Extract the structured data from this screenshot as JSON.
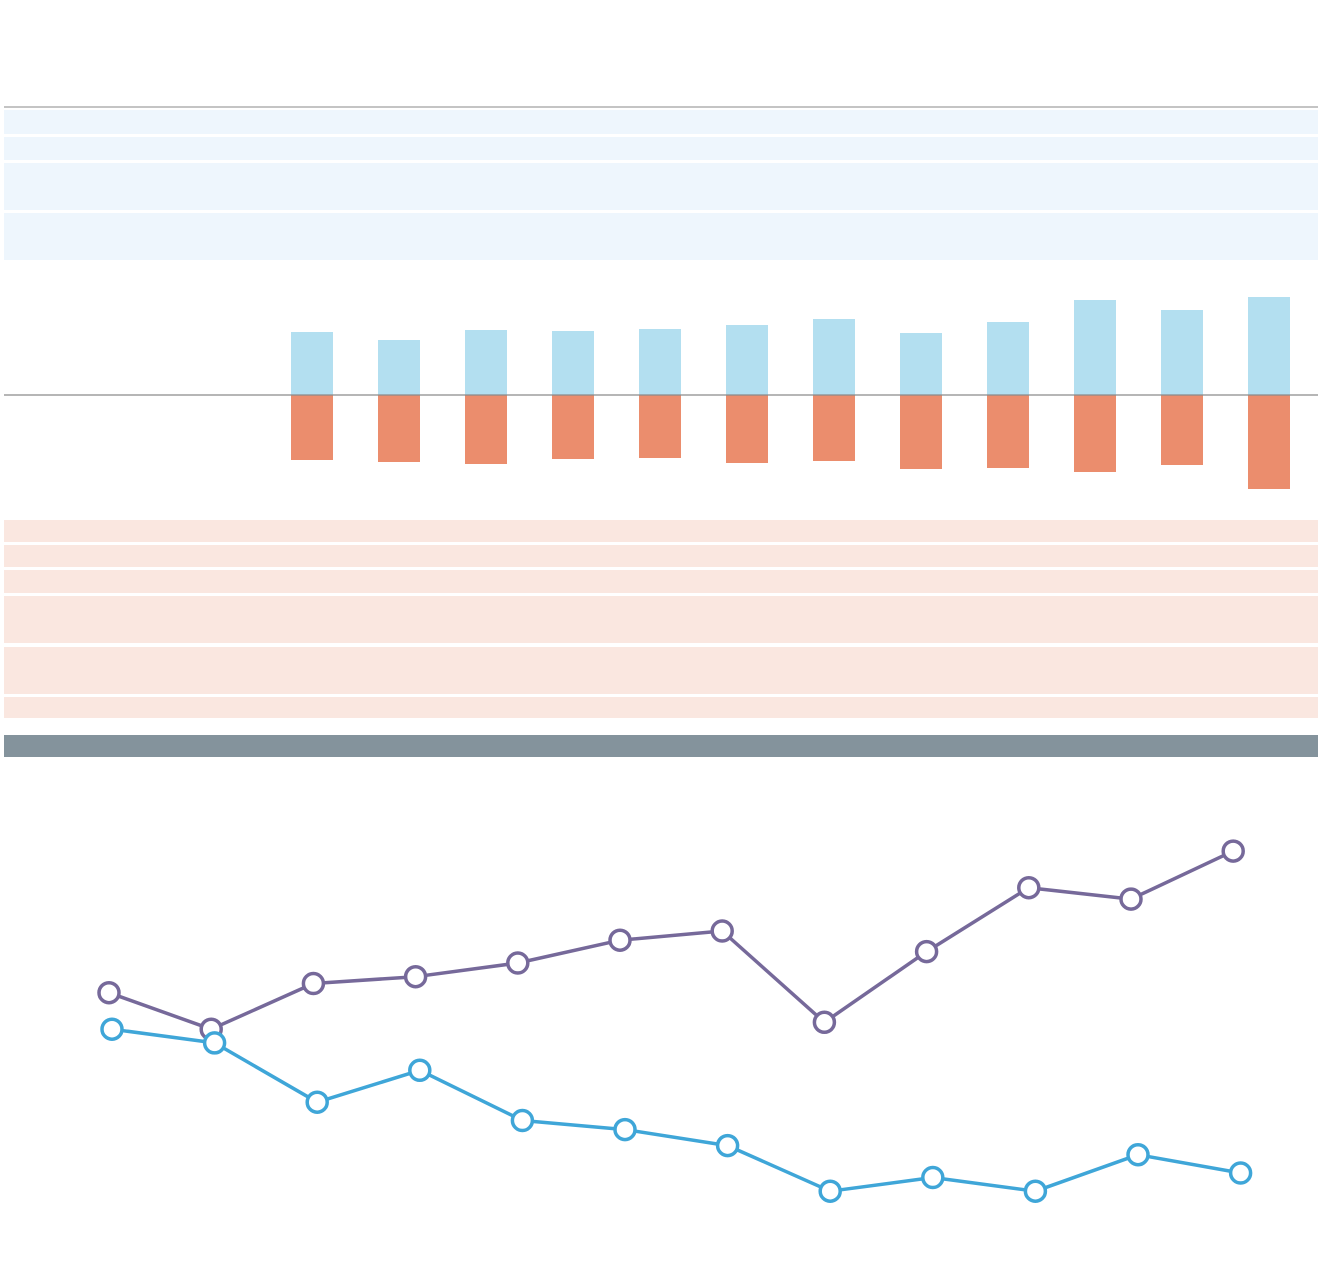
{
  "colors": {
    "positive_bar": "#b3dff0",
    "negative_bar": "#eb8d6d",
    "upper_band": "#eef6fd",
    "lower_band": "#fae7e0",
    "divider_bar": "#84939c",
    "axis_line": "#8a8a8a",
    "line_series_a": "#76699a",
    "line_series_b": "#3fa6d8",
    "marker_fill": "#ffffff"
  },
  "chart_data": [
    {
      "type": "bar",
      "categories": [
        "",
        "",
        "",
        "",
        "",
        "",
        "",
        "",
        "",
        "",
        "",
        "",
        "",
        "",
        ""
      ],
      "series": [
        {
          "values": [
            null,
            null,
            null,
            63,
            55,
            65,
            64,
            66,
            70,
            76,
            62,
            73,
            95,
            85,
            98
          ]
        },
        {
          "values": [
            null,
            null,
            null,
            -65,
            -67,
            -69,
            -64,
            -63,
            -68,
            -66,
            -74,
            -73,
            -77,
            -70,
            -94
          ]
        }
      ],
      "grid": false
    },
    {
      "type": "line",
      "series": [
        {
          "values": [
            59,
            51,
            61,
            62.5,
            65.5,
            70.5,
            72.5,
            52.5,
            68,
            82,
            79.5,
            90
          ]
        },
        {
          "values": [
            51,
            48,
            35,
            42,
            31,
            29,
            25.5,
            15.5,
            18.5,
            15.5,
            23.5,
            19.5
          ]
        }
      ],
      "grid": false
    }
  ]
}
